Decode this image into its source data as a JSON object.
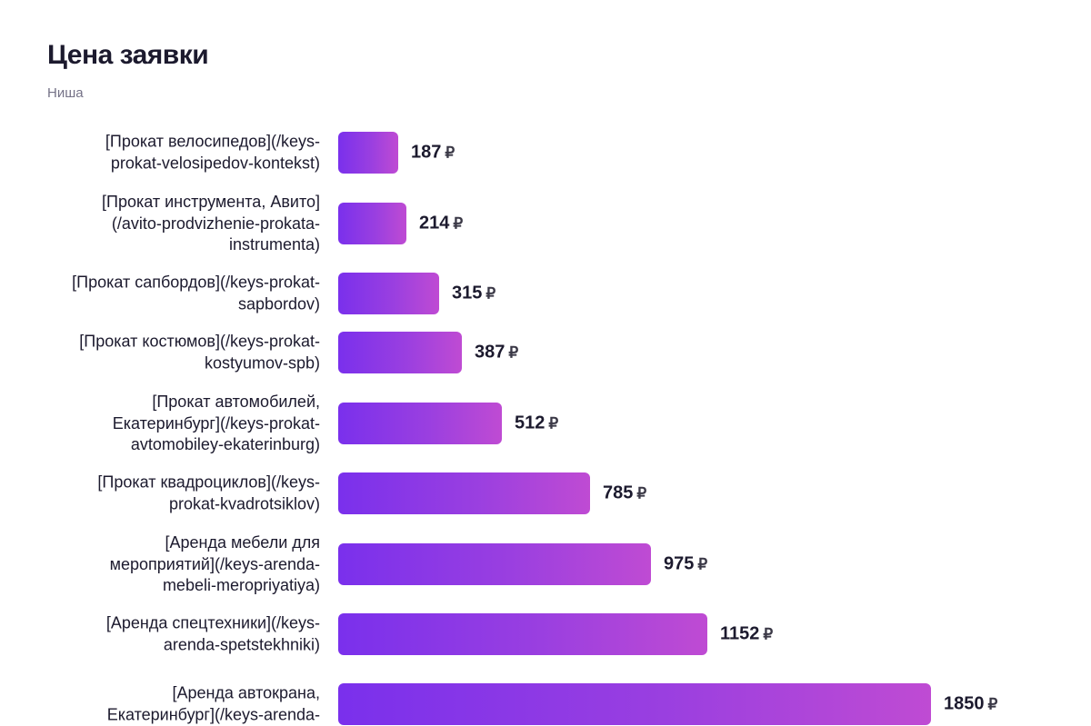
{
  "chart_data": {
    "type": "bar",
    "orientation": "horizontal",
    "title": "Цена заявки",
    "subtitle": "Ниша",
    "currency": "₽",
    "categories": [
      "[Прокат велосипедов](/keys-prokat-velosipedov-kontekst)",
      "[Прокат инструмента, Авито](/avito-prodvizhenie-prokata-instrumenta)",
      "[Прокат сапбордов](/keys-prokat-sapbordov)",
      "[Прокат костюмов](/keys-prokat-kostyumov-spb)",
      "[Прокат автомобилей, Екатеринбург](/keys-prokat-avtomobiley-ekaterinburg)",
      "[Прокат квадроциклов](/keys-prokat-kvadrotsiklov)",
      "[Аренда мебели для мероприятий](/keys-arenda-mebeli-meropriyatiya)",
      "[Аренда спецтехники](/keys-arenda-spetstekhniki)",
      "[Аренда автокрана, Екатеринбург](/keys-arenda-"
    ],
    "label_lines": [
      [
        "[Прокат велосипедов](/keys-",
        "prokat-velosipedov-kontekst)"
      ],
      [
        "[Прокат инструмента, Авито]",
        "(/avito-prodvizhenie-prokata-",
        "instrumenta)"
      ],
      [
        "[Прокат сапбордов](/keys-prokat-",
        "sapbordov)"
      ],
      [
        "[Прокат костюмов](/keys-prokat-",
        "kostyumov-spb)"
      ],
      [
        "[Прокат автомобилей,",
        "Екатеринбург](/keys-prokat-",
        "avtomobiley-ekaterinburg)"
      ],
      [
        "[Прокат квадроциклов](/keys-",
        "prokat-kvadrotsiklov)"
      ],
      [
        "[Аренда мебели для",
        "мероприятий](/keys-arenda-",
        "mebeli-meropriyatiya)"
      ],
      [
        "[Аренда спецтехники](/keys-",
        "arenda-spetstekhniki)"
      ],
      [
        "[Аренда автокрана,",
        "Екатеринбург](/keys-arenda-"
      ]
    ],
    "values": [
      187,
      214,
      315,
      387,
      512,
      785,
      975,
      1152,
      1850
    ],
    "value_labels": [
      "187",
      "214",
      "315",
      "387",
      "512",
      "785",
      "975",
      "1152",
      "1850"
    ],
    "bar_gradient": [
      "#7a30ec",
      "#bf4bd3"
    ]
  }
}
